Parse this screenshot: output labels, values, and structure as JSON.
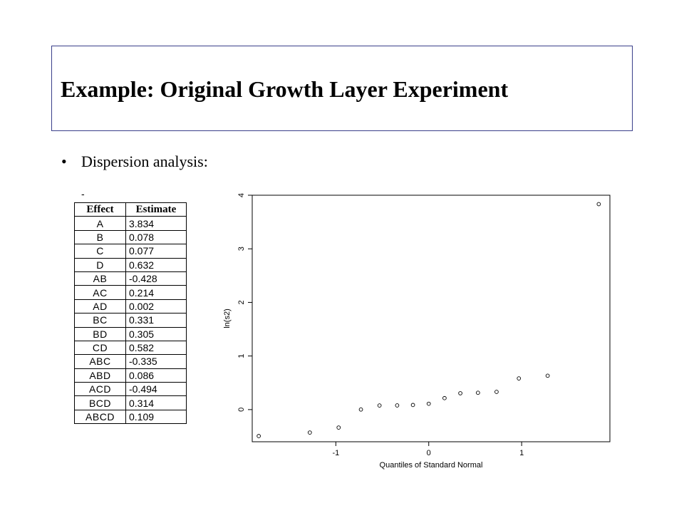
{
  "slide": {
    "title": "Example: Original Growth Layer Experiment",
    "bullet": "Dispersion analysis:",
    "dash": "-"
  },
  "table": {
    "headers": [
      "Effect",
      "Estimate"
    ],
    "rows": [
      {
        "effect": "A",
        "estimate": "3.834"
      },
      {
        "effect": "B",
        "estimate": "0.078"
      },
      {
        "effect": "C",
        "estimate": "0.077"
      },
      {
        "effect": "D",
        "estimate": "0.632"
      },
      {
        "effect": "AB",
        "estimate": "-0.428"
      },
      {
        "effect": "AC",
        "estimate": "0.214"
      },
      {
        "effect": "AD",
        "estimate": "0.002"
      },
      {
        "effect": "BC",
        "estimate": "0.331"
      },
      {
        "effect": "BD",
        "estimate": "0.305"
      },
      {
        "effect": "CD",
        "estimate": "0.582"
      },
      {
        "effect": "ABC",
        "estimate": "-0.335"
      },
      {
        "effect": "ABD",
        "estimate": "0.086"
      },
      {
        "effect": "ACD",
        "estimate": "-0.494"
      },
      {
        "effect": "BCD",
        "estimate": "0.314"
      },
      {
        "effect": "ABCD",
        "estimate": "0.109"
      }
    ]
  },
  "chart_data": {
    "type": "scatter",
    "xlabel": "Quantiles of Standard Normal",
    "ylabel": "ln(s2)",
    "xlim": [
      -1.9,
      1.95
    ],
    "ylim": [
      -0.6,
      4.0
    ],
    "xticks": [
      -1,
      0,
      1
    ],
    "yticks": [
      0,
      1,
      2,
      3,
      4
    ],
    "grid": false,
    "points": [
      {
        "x": -1.83,
        "y": -0.494
      },
      {
        "x": -1.28,
        "y": -0.428
      },
      {
        "x": -0.97,
        "y": -0.335
      },
      {
        "x": -0.73,
        "y": 0.002
      },
      {
        "x": -0.53,
        "y": 0.077
      },
      {
        "x": -0.34,
        "y": 0.078
      },
      {
        "x": -0.17,
        "y": 0.086
      },
      {
        "x": 0.0,
        "y": 0.109
      },
      {
        "x": 0.17,
        "y": 0.214
      },
      {
        "x": 0.34,
        "y": 0.305
      },
      {
        "x": 0.53,
        "y": 0.314
      },
      {
        "x": 0.73,
        "y": 0.331
      },
      {
        "x": 0.97,
        "y": 0.582
      },
      {
        "x": 1.28,
        "y": 0.632
      },
      {
        "x": 1.83,
        "y": 3.834
      }
    ]
  }
}
